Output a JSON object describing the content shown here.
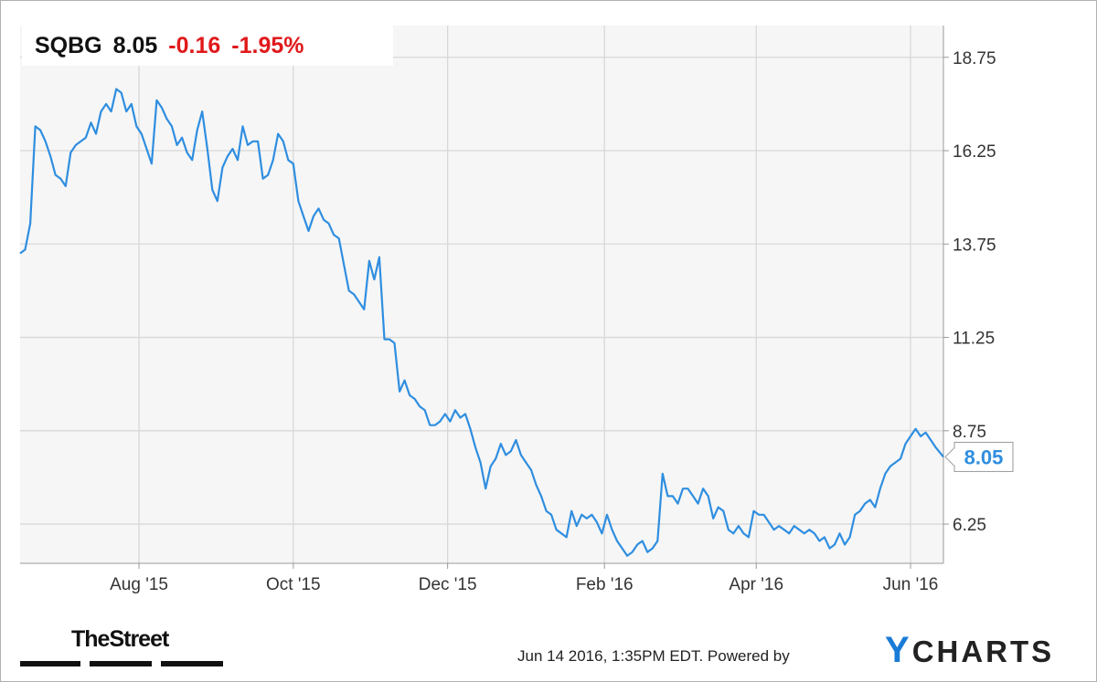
{
  "header": {
    "ticker": "SQBG",
    "price": "8.05",
    "change": "-0.16",
    "change_pct": "-1.95%"
  },
  "footer": {
    "timestamp": "Jun 14 2016, 1:35PM EDT.",
    "powered_by": "Powered by",
    "brand_y": "Y",
    "brand_rest": "CHARTS",
    "publisher_logo": "TheStreet"
  },
  "colors": {
    "line": "#2f8ee0",
    "negative": "#e0191b",
    "grid": "#d8d8d8",
    "plot_bg": "#f6f6f6",
    "brand": "#1a7bd6"
  },
  "chart_data": {
    "type": "line",
    "title": "",
    "xlabel": "",
    "ylabel": "",
    "ylim": [
      5.2,
      19.6
    ],
    "xlim": [
      "2015-06-15",
      "2016-06-14"
    ],
    "y_axis_side": "right",
    "grid": true,
    "legend": "none",
    "y_ticks": [
      {
        "value": 6.25,
        "label": "6.25"
      },
      {
        "value": 8.75,
        "label": "8.75"
      },
      {
        "value": 11.25,
        "label": "11.25"
      },
      {
        "value": 13.75,
        "label": "13.75"
      },
      {
        "value": 16.25,
        "label": "16.25"
      },
      {
        "value": 18.75,
        "label": "18.75"
      }
    ],
    "x_ticks": [
      {
        "date": "2015-08-01",
        "label": "Aug '15"
      },
      {
        "date": "2015-10-01",
        "label": "Oct '15"
      },
      {
        "date": "2015-12-01",
        "label": "Dec '15"
      },
      {
        "date": "2016-02-01",
        "label": "Feb '16"
      },
      {
        "date": "2016-04-01",
        "label": "Apr '16"
      },
      {
        "date": "2016-06-01",
        "label": "Jun '16"
      }
    ],
    "last_value_label": "8.05",
    "series": [
      {
        "name": "",
        "points": [
          [
            "2015-06-15",
            13.5
          ],
          [
            "2015-06-17",
            13.6
          ],
          [
            "2015-06-19",
            14.3
          ],
          [
            "2015-06-21",
            16.9
          ],
          [
            "2015-06-23",
            16.8
          ],
          [
            "2015-06-25",
            16.5
          ],
          [
            "2015-06-27",
            16.1
          ],
          [
            "2015-06-29",
            15.6
          ],
          [
            "2015-07-01",
            15.5
          ],
          [
            "2015-07-03",
            15.3
          ],
          [
            "2015-07-05",
            16.2
          ],
          [
            "2015-07-07",
            16.4
          ],
          [
            "2015-07-09",
            16.5
          ],
          [
            "2015-07-11",
            16.6
          ],
          [
            "2015-07-13",
            17.0
          ],
          [
            "2015-07-15",
            16.7
          ],
          [
            "2015-07-17",
            17.3
          ],
          [
            "2015-07-19",
            17.5
          ],
          [
            "2015-07-21",
            17.3
          ],
          [
            "2015-07-23",
            17.9
          ],
          [
            "2015-07-25",
            17.8
          ],
          [
            "2015-07-27",
            17.3
          ],
          [
            "2015-07-29",
            17.5
          ],
          [
            "2015-07-31",
            16.9
          ],
          [
            "2015-08-02",
            16.7
          ],
          [
            "2015-08-04",
            16.3
          ],
          [
            "2015-08-06",
            15.9
          ],
          [
            "2015-08-08",
            17.6
          ],
          [
            "2015-08-10",
            17.4
          ],
          [
            "2015-08-12",
            17.1
          ],
          [
            "2015-08-14",
            16.9
          ],
          [
            "2015-08-16",
            16.4
          ],
          [
            "2015-08-18",
            16.6
          ],
          [
            "2015-08-20",
            16.2
          ],
          [
            "2015-08-22",
            16.0
          ],
          [
            "2015-08-24",
            16.8
          ],
          [
            "2015-08-26",
            17.3
          ],
          [
            "2015-08-28",
            16.3
          ],
          [
            "2015-08-30",
            15.2
          ],
          [
            "2015-09-01",
            14.9
          ],
          [
            "2015-09-03",
            15.8
          ],
          [
            "2015-09-05",
            16.1
          ],
          [
            "2015-09-07",
            16.3
          ],
          [
            "2015-09-09",
            16.0
          ],
          [
            "2015-09-11",
            16.9
          ],
          [
            "2015-09-13",
            16.4
          ],
          [
            "2015-09-15",
            16.5
          ],
          [
            "2015-09-17",
            16.5
          ],
          [
            "2015-09-19",
            15.5
          ],
          [
            "2015-09-21",
            15.6
          ],
          [
            "2015-09-23",
            16.0
          ],
          [
            "2015-09-25",
            16.7
          ],
          [
            "2015-09-27",
            16.5
          ],
          [
            "2015-09-29",
            16.0
          ],
          [
            "2015-10-01",
            15.9
          ],
          [
            "2015-10-03",
            14.9
          ],
          [
            "2015-10-05",
            14.5
          ],
          [
            "2015-10-07",
            14.1
          ],
          [
            "2015-10-09",
            14.5
          ],
          [
            "2015-10-11",
            14.7
          ],
          [
            "2015-10-13",
            14.4
          ],
          [
            "2015-10-15",
            14.3
          ],
          [
            "2015-10-17",
            14.0
          ],
          [
            "2015-10-19",
            13.9
          ],
          [
            "2015-10-21",
            13.2
          ],
          [
            "2015-10-23",
            12.5
          ],
          [
            "2015-10-25",
            12.4
          ],
          [
            "2015-10-27",
            12.2
          ],
          [
            "2015-10-29",
            12.0
          ],
          [
            "2015-10-31",
            13.3
          ],
          [
            "2015-11-02",
            12.8
          ],
          [
            "2015-11-04",
            13.4
          ],
          [
            "2015-11-06",
            11.2
          ],
          [
            "2015-11-08",
            11.2
          ],
          [
            "2015-11-10",
            11.1
          ],
          [
            "2015-11-12",
            9.8
          ],
          [
            "2015-11-14",
            10.1
          ],
          [
            "2015-11-16",
            9.7
          ],
          [
            "2015-11-18",
            9.6
          ],
          [
            "2015-11-20",
            9.4
          ],
          [
            "2015-11-22",
            9.3
          ],
          [
            "2015-11-24",
            8.9
          ],
          [
            "2015-11-26",
            8.9
          ],
          [
            "2015-11-28",
            9.0
          ],
          [
            "2015-11-30",
            9.2
          ],
          [
            "2015-12-02",
            9.0
          ],
          [
            "2015-12-04",
            9.3
          ],
          [
            "2015-12-06",
            9.1
          ],
          [
            "2015-12-08",
            9.2
          ],
          [
            "2015-12-10",
            8.8
          ],
          [
            "2015-12-12",
            8.3
          ],
          [
            "2015-12-14",
            7.9
          ],
          [
            "2015-12-16",
            7.2
          ],
          [
            "2015-12-18",
            7.8
          ],
          [
            "2015-12-20",
            8.0
          ],
          [
            "2015-12-22",
            8.4
          ],
          [
            "2015-12-24",
            8.1
          ],
          [
            "2015-12-26",
            8.2
          ],
          [
            "2015-12-28",
            8.5
          ],
          [
            "2015-12-30",
            8.1
          ],
          [
            "2016-01-01",
            7.9
          ],
          [
            "2016-01-03",
            7.7
          ],
          [
            "2016-01-05",
            7.3
          ],
          [
            "2016-01-07",
            7.0
          ],
          [
            "2016-01-09",
            6.6
          ],
          [
            "2016-01-11",
            6.5
          ],
          [
            "2016-01-13",
            6.1
          ],
          [
            "2016-01-15",
            6.0
          ],
          [
            "2016-01-17",
            5.9
          ],
          [
            "2016-01-19",
            6.6
          ],
          [
            "2016-01-21",
            6.2
          ],
          [
            "2016-01-23",
            6.5
          ],
          [
            "2016-01-25",
            6.4
          ],
          [
            "2016-01-27",
            6.5
          ],
          [
            "2016-01-29",
            6.3
          ],
          [
            "2016-01-31",
            6.0
          ],
          [
            "2016-02-02",
            6.5
          ],
          [
            "2016-02-04",
            6.1
          ],
          [
            "2016-02-06",
            5.8
          ],
          [
            "2016-02-08",
            5.6
          ],
          [
            "2016-02-10",
            5.4
          ],
          [
            "2016-02-12",
            5.5
          ],
          [
            "2016-02-14",
            5.7
          ],
          [
            "2016-02-16",
            5.8
          ],
          [
            "2016-02-18",
            5.5
          ],
          [
            "2016-02-20",
            5.6
          ],
          [
            "2016-02-22",
            5.8
          ],
          [
            "2016-02-24",
            7.6
          ],
          [
            "2016-02-26",
            7.0
          ],
          [
            "2016-02-28",
            7.0
          ],
          [
            "2016-03-01",
            6.8
          ],
          [
            "2016-03-03",
            7.2
          ],
          [
            "2016-03-05",
            7.2
          ],
          [
            "2016-03-07",
            7.0
          ],
          [
            "2016-03-09",
            6.8
          ],
          [
            "2016-03-11",
            7.2
          ],
          [
            "2016-03-13",
            7.0
          ],
          [
            "2016-03-15",
            6.4
          ],
          [
            "2016-03-17",
            6.7
          ],
          [
            "2016-03-19",
            6.6
          ],
          [
            "2016-03-21",
            6.1
          ],
          [
            "2016-03-23",
            6.0
          ],
          [
            "2016-03-25",
            6.2
          ],
          [
            "2016-03-27",
            6.0
          ],
          [
            "2016-03-29",
            5.9
          ],
          [
            "2016-03-31",
            6.6
          ],
          [
            "2016-04-02",
            6.5
          ],
          [
            "2016-04-04",
            6.5
          ],
          [
            "2016-04-06",
            6.3
          ],
          [
            "2016-04-08",
            6.1
          ],
          [
            "2016-04-10",
            6.2
          ],
          [
            "2016-04-12",
            6.1
          ],
          [
            "2016-04-14",
            6.0
          ],
          [
            "2016-04-16",
            6.2
          ],
          [
            "2016-04-18",
            6.1
          ],
          [
            "2016-04-20",
            6.0
          ],
          [
            "2016-04-22",
            6.1
          ],
          [
            "2016-04-24",
            6.0
          ],
          [
            "2016-04-26",
            5.8
          ],
          [
            "2016-04-28",
            5.9
          ],
          [
            "2016-04-30",
            5.6
          ],
          [
            "2016-05-02",
            5.7
          ],
          [
            "2016-05-04",
            6.0
          ],
          [
            "2016-05-06",
            5.7
          ],
          [
            "2016-05-08",
            5.9
          ],
          [
            "2016-05-10",
            6.5
          ],
          [
            "2016-05-12",
            6.6
          ],
          [
            "2016-05-14",
            6.8
          ],
          [
            "2016-05-16",
            6.9
          ],
          [
            "2016-05-18",
            6.7
          ],
          [
            "2016-05-20",
            7.2
          ],
          [
            "2016-05-22",
            7.6
          ],
          [
            "2016-05-24",
            7.8
          ],
          [
            "2016-05-26",
            7.9
          ],
          [
            "2016-05-28",
            8.0
          ],
          [
            "2016-05-30",
            8.4
          ],
          [
            "2016-06-01",
            8.6
          ],
          [
            "2016-06-03",
            8.8
          ],
          [
            "2016-06-05",
            8.6
          ],
          [
            "2016-06-07",
            8.7
          ],
          [
            "2016-06-09",
            8.5
          ],
          [
            "2016-06-11",
            8.3
          ],
          [
            "2016-06-14",
            8.05
          ]
        ]
      }
    ]
  }
}
